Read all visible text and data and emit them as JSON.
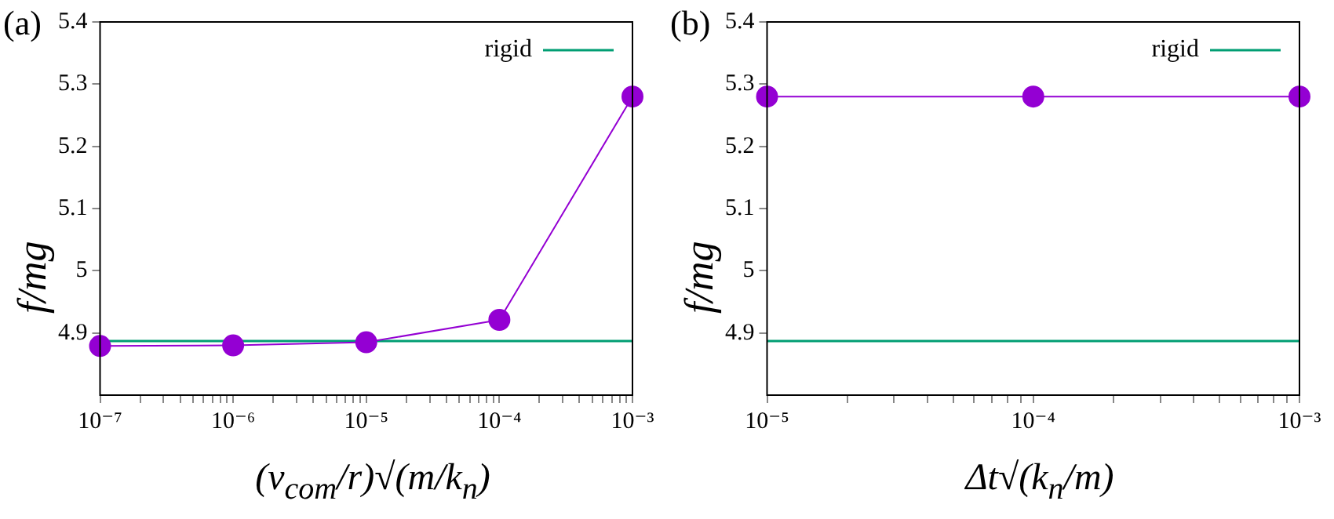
{
  "chart_data": [
    {
      "type": "line",
      "xlabel": "(v$_{com}$/r)√(m/k$_{n}$)",
      "ylabel": "f/mg",
      "annotations": [
        "(a)"
      ],
      "log": "x",
      "marker": "circle",
      "legend": "top right",
      "grid": false,
      "xlim": [
        1e-07,
        0.001
      ],
      "xticks": [
        {
          "value": 1e-07,
          "label": "10⁻⁷"
        },
        {
          "value": 2e-07,
          "label": null
        },
        {
          "value": 3e-07,
          "label": null
        },
        {
          "value": 4e-07,
          "label": null
        },
        {
          "value": 5e-07,
          "label": null
        },
        {
          "value": 6e-07,
          "label": null
        },
        {
          "value": 7e-07,
          "label": null
        },
        {
          "value": 8e-07,
          "label": null
        },
        {
          "value": 9e-07,
          "label": null
        },
        {
          "value": 1e-06,
          "label": "10⁻⁶"
        },
        {
          "value": 2e-06,
          "label": null
        },
        {
          "value": 3e-06,
          "label": null
        },
        {
          "value": 4e-06,
          "label": null
        },
        {
          "value": 5e-06,
          "label": null
        },
        {
          "value": 6e-06,
          "label": null
        },
        {
          "value": 7e-06,
          "label": null
        },
        {
          "value": 8e-06,
          "label": null
        },
        {
          "value": 9e-06,
          "label": null
        },
        {
          "value": 1e-05,
          "label": "10⁻⁵"
        },
        {
          "value": 2e-05,
          "label": null
        },
        {
          "value": 3e-05,
          "label": null
        },
        {
          "value": 4e-05,
          "label": null
        },
        {
          "value": 5e-05,
          "label": null
        },
        {
          "value": 6e-05,
          "label": null
        },
        {
          "value": 7e-05,
          "label": null
        },
        {
          "value": 8e-05,
          "label": null
        },
        {
          "value": 9e-05,
          "label": null
        },
        {
          "value": 0.0001,
          "label": "10⁻⁴"
        },
        {
          "value": 0.0002,
          "label": null
        },
        {
          "value": 0.0003,
          "label": null
        },
        {
          "value": 0.0004,
          "label": null
        },
        {
          "value": 0.0005,
          "label": null
        },
        {
          "value": 0.0006,
          "label": null
        },
        {
          "value": 0.0007,
          "label": null
        },
        {
          "value": 0.0008,
          "label": null
        },
        {
          "value": 0.0009,
          "label": null
        },
        {
          "value": 0.001,
          "label": "10⁻³"
        }
      ],
      "ylim": [
        4.8,
        5.4
      ],
      "yticks": [
        4.9,
        5,
        5.1,
        5.2,
        5.3,
        5.4
      ],
      "series": [
        {
          "color": "#9400d3",
          "x": [
            1e-07,
            1e-06,
            1e-05,
            0.0001,
            0.001
          ],
          "values": [
            4.879,
            4.88,
            4.885,
            4.921,
            5.28
          ]
        },
        {
          "name": "rigid",
          "color": "#009e73",
          "marker": "none",
          "x": [
            1e-07,
            0.001
          ],
          "values": [
            4.887,
            4.887
          ]
        }
      ]
    },
    {
      "type": "line",
      "xlabel": "Δt√(k$_{n}$/m)",
      "ylabel": "f/mg",
      "annotations": [
        "(b)"
      ],
      "log": "x",
      "marker": "circle",
      "legend": "top right",
      "grid": false,
      "xlim": [
        1e-05,
        0.001
      ],
      "xticks": [
        {
          "value": 1e-05,
          "label": "10⁻⁵"
        },
        {
          "value": 2e-05,
          "label": null
        },
        {
          "value": 3e-05,
          "label": null
        },
        {
          "value": 4e-05,
          "label": null
        },
        {
          "value": 5e-05,
          "label": null
        },
        {
          "value": 6e-05,
          "label": null
        },
        {
          "value": 7e-05,
          "label": null
        },
        {
          "value": 8e-05,
          "label": null
        },
        {
          "value": 9e-05,
          "label": null
        },
        {
          "value": 0.0001,
          "label": "10⁻⁴"
        },
        {
          "value": 0.0002,
          "label": null
        },
        {
          "value": 0.0003,
          "label": null
        },
        {
          "value": 0.0004,
          "label": null
        },
        {
          "value": 0.0005,
          "label": null
        },
        {
          "value": 0.0006,
          "label": null
        },
        {
          "value": 0.0007,
          "label": null
        },
        {
          "value": 0.0008,
          "label": null
        },
        {
          "value": 0.0009,
          "label": null
        },
        {
          "value": 0.001,
          "label": "10⁻³"
        }
      ],
      "ylim": [
        4.8,
        5.4
      ],
      "yticks": [
        4.9,
        5,
        5.1,
        5.2,
        5.3,
        5.4
      ],
      "series": [
        {
          "color": "#9400d3",
          "x": [
            1e-05,
            0.0001,
            0.001
          ],
          "values": [
            5.28,
            5.28,
            5.28
          ]
        },
        {
          "name": "rigid",
          "color": "#009e73",
          "marker": "none",
          "x": [
            1e-05,
            0.001
          ],
          "values": [
            4.887,
            4.887
          ]
        }
      ]
    }
  ]
}
